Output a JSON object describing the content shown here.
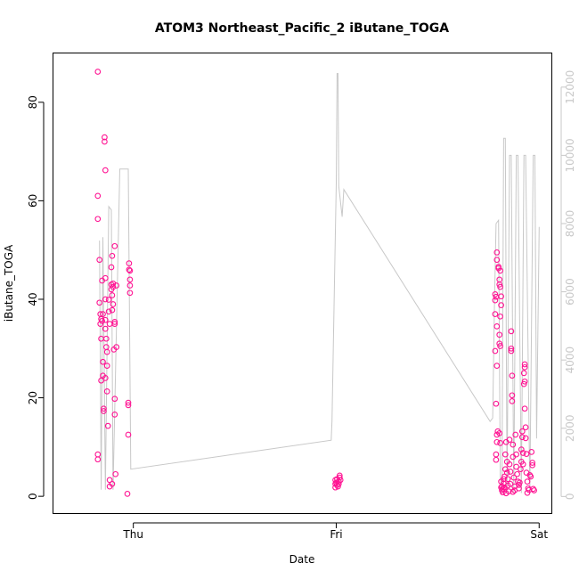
{
  "chart_data": {
    "type": "scatter",
    "title": "ATOM3 Northeast_Pacific_2 iButane_TOGA",
    "xlabel": "Date",
    "ylabel": "iButane_TOGA",
    "x_unit": "hours since Thu 00:00",
    "xlim": [
      -9.5,
      49.5
    ],
    "x_ticks": [
      {
        "value": 0,
        "label": "Thu"
      },
      {
        "value": 24,
        "label": "Fri"
      },
      {
        "value": 48,
        "label": "Sat"
      }
    ],
    "ylim": [
      -3.5,
      90
    ],
    "y_ticks": [
      0,
      20,
      40,
      60,
      80
    ],
    "y2lim": [
      -500,
      13000
    ],
    "y2_ticks": [
      0,
      2000,
      4000,
      6000,
      8000,
      10000,
      12000
    ],
    "grid": false,
    "point_color": "#ff1493",
    "line_color": "#c8c8c8",
    "series": [
      {
        "type": "scatter",
        "axis": "left",
        "points": [
          [
            -4.2,
            86.2
          ],
          [
            -4.2,
            61.0
          ],
          [
            -4.2,
            56.3
          ],
          [
            -4.2,
            8.5
          ],
          [
            -4.2,
            7.5
          ],
          [
            -4.0,
            48.0
          ],
          [
            -4.0,
            39.3
          ],
          [
            -3.9,
            37.0
          ],
          [
            -3.9,
            35.0
          ],
          [
            -3.8,
            32.0
          ],
          [
            -3.8,
            23.5
          ],
          [
            -3.7,
            43.8
          ],
          [
            -3.7,
            35.6
          ],
          [
            -3.6,
            37.0
          ],
          [
            -3.6,
            27.3
          ],
          [
            -3.6,
            24.5
          ],
          [
            -3.5,
            17.3
          ],
          [
            -3.5,
            17.8
          ],
          [
            -3.4,
            72.9
          ],
          [
            -3.4,
            72.0
          ],
          [
            -3.3,
            66.2
          ],
          [
            -3.3,
            44.3
          ],
          [
            -3.3,
            40.0
          ],
          [
            -3.3,
            35.8
          ],
          [
            -3.3,
            34.0
          ],
          [
            -3.2,
            32.0
          ],
          [
            -3.2,
            30.3
          ],
          [
            -3.1,
            29.3
          ],
          [
            -3.1,
            26.5
          ],
          [
            -3.1,
            21.3
          ],
          [
            -3.0,
            14.3
          ],
          [
            -2.9,
            39.9
          ],
          [
            -2.9,
            37.5
          ],
          [
            -2.8,
            35.0
          ],
          [
            -2.8,
            3.3
          ],
          [
            -2.8,
            2.0
          ],
          [
            -2.6,
            46.5
          ],
          [
            -2.6,
            43.0
          ],
          [
            -2.6,
            42.0
          ],
          [
            -2.5,
            40.8
          ],
          [
            -2.5,
            37.8
          ],
          [
            -2.5,
            48.8
          ],
          [
            -2.4,
            43.2
          ],
          [
            -2.4,
            42.5
          ],
          [
            -2.4,
            39.0
          ],
          [
            -2.3,
            29.8
          ],
          [
            -2.2,
            50.8
          ],
          [
            -2.2,
            35.4
          ],
          [
            -2.2,
            35.0
          ],
          [
            -2.2,
            19.8
          ],
          [
            -2.2,
            16.6
          ],
          [
            -2.1,
            4.5
          ],
          [
            -2.0,
            30.3
          ],
          [
            -2.0,
            42.8
          ],
          [
            -0.7,
            0.5
          ],
          [
            -0.6,
            19.0
          ],
          [
            -0.6,
            18.5
          ],
          [
            -0.6,
            12.5
          ],
          [
            -0.5,
            47.3
          ],
          [
            -0.5,
            46.0
          ],
          [
            -0.4,
            45.8
          ],
          [
            -0.4,
            44.0
          ],
          [
            -0.4,
            42.8
          ],
          [
            -0.4,
            41.3
          ],
          [
            -2.5,
            2.5
          ],
          [
            -3.3,
            24.0
          ],
          [
            -3.8,
            36.0
          ],
          [
            23.9,
            3.3
          ],
          [
            23.9,
            2.5
          ],
          [
            23.9,
            1.8
          ],
          [
            24.0,
            2.8
          ],
          [
            24.1,
            2.3
          ],
          [
            24.1,
            3.5
          ],
          [
            24.2,
            2.0
          ],
          [
            24.3,
            3.0
          ],
          [
            24.3,
            2.5
          ],
          [
            24.4,
            3.8
          ],
          [
            24.4,
            4.2
          ],
          [
            24.5,
            3.3
          ],
          [
            42.8,
            41.0
          ],
          [
            42.8,
            39.8
          ],
          [
            42.8,
            37.0
          ],
          [
            42.8,
            29.5
          ],
          [
            42.9,
            40.5
          ],
          [
            42.9,
            18.8
          ],
          [
            42.9,
            8.5
          ],
          [
            42.9,
            7.4
          ],
          [
            43.0,
            48.0
          ],
          [
            43.0,
            49.5
          ],
          [
            43.0,
            34.5
          ],
          [
            43.0,
            26.5
          ],
          [
            43.0,
            12.5
          ],
          [
            43.0,
            11.0
          ],
          [
            43.1,
            13.2
          ],
          [
            43.2,
            46.6
          ],
          [
            43.2,
            46.3
          ],
          [
            43.3,
            44.0
          ],
          [
            43.3,
            43.0
          ],
          [
            43.3,
            32.8
          ],
          [
            43.3,
            31.0
          ],
          [
            43.3,
            12.8
          ],
          [
            43.4,
            45.8
          ],
          [
            43.4,
            42.5
          ],
          [
            43.4,
            36.5
          ],
          [
            43.4,
            30.5
          ],
          [
            43.4,
            10.8
          ],
          [
            43.5,
            40.6
          ],
          [
            43.5,
            38.8
          ],
          [
            43.5,
            3.0
          ],
          [
            43.6,
            2.0
          ],
          [
            43.6,
            1.2
          ],
          [
            43.7,
            0.8
          ],
          [
            43.7,
            1.5
          ],
          [
            43.8,
            3.5
          ],
          [
            43.8,
            2.6
          ],
          [
            43.9,
            1.8
          ],
          [
            44.0,
            8.5
          ],
          [
            44.0,
            5.5
          ],
          [
            44.1,
            11.0
          ],
          [
            44.2,
            7.0
          ],
          [
            44.2,
            4.8
          ],
          [
            44.3,
            3.5
          ],
          [
            44.3,
            2.2
          ],
          [
            44.4,
            1.0
          ],
          [
            44.5,
            11.5
          ],
          [
            44.5,
            6.5
          ],
          [
            44.6,
            5.0
          ],
          [
            44.6,
            2.5
          ],
          [
            44.7,
            33.5
          ],
          [
            44.7,
            30.0
          ],
          [
            44.7,
            29.5
          ],
          [
            44.8,
            24.5
          ],
          [
            44.8,
            20.5
          ],
          [
            44.8,
            19.3
          ],
          [
            44.9,
            10.5
          ],
          [
            44.9,
            8.0
          ],
          [
            45.0,
            3.8
          ],
          [
            45.1,
            2.0
          ],
          [
            45.1,
            1.2
          ],
          [
            45.2,
            12.5
          ],
          [
            45.3,
            8.5
          ],
          [
            45.3,
            6.0
          ],
          [
            45.4,
            4.5
          ],
          [
            45.5,
            3.0
          ],
          [
            45.6,
            1.6
          ],
          [
            45.7,
            2.8
          ],
          [
            45.8,
            5.5
          ],
          [
            45.9,
            7.0
          ],
          [
            45.9,
            9.5
          ],
          [
            46.0,
            12.0
          ],
          [
            46.0,
            13.2
          ],
          [
            46.1,
            8.8
          ],
          [
            46.1,
            6.5
          ],
          [
            46.2,
            25.0
          ],
          [
            46.2,
            22.8
          ],
          [
            46.3,
            26.2
          ],
          [
            46.3,
            26.8
          ],
          [
            46.3,
            23.3
          ],
          [
            46.3,
            17.8
          ],
          [
            46.4,
            14.0
          ],
          [
            46.4,
            11.8
          ],
          [
            46.5,
            8.6
          ],
          [
            46.5,
            4.8
          ],
          [
            46.6,
            3.0
          ],
          [
            46.7,
            1.6
          ],
          [
            46.8,
            1.3
          ],
          [
            46.9,
            4.3
          ],
          [
            47.0,
            4.0
          ],
          [
            47.1,
            9.0
          ],
          [
            47.2,
            6.3
          ],
          [
            47.2,
            6.8
          ],
          [
            47.3,
            1.5
          ],
          [
            47.4,
            1.2
          ],
          [
            43.5,
            1.8
          ],
          [
            44.1,
            0.6
          ],
          [
            44.9,
            0.9
          ],
          [
            45.6,
            2.3
          ],
          [
            46.6,
            0.7
          ],
          [
            43.9,
            4.0
          ]
        ]
      },
      {
        "type": "line",
        "axis": "right",
        "points": [
          [
            -4.0,
            7500
          ],
          [
            -3.8,
            200
          ],
          [
            -3.6,
            7600
          ],
          [
            -3.3,
            200
          ],
          [
            -2.9,
            8500
          ],
          [
            -2.6,
            8400
          ],
          [
            -2.4,
            200
          ],
          [
            -1.6,
            9600
          ],
          [
            -1.0,
            9600
          ],
          [
            -0.6,
            9600
          ],
          [
            -0.3,
            800
          ],
          [
            23.4,
            1650
          ],
          [
            23.5,
            2200
          ],
          [
            24.0,
            9200
          ],
          [
            24.1,
            12400
          ],
          [
            24.2,
            12400
          ],
          [
            24.7,
            8200
          ],
          [
            24.9,
            9000
          ],
          [
            42.2,
            2200
          ],
          [
            42.5,
            2300
          ],
          [
            42.7,
            5500
          ],
          [
            42.9,
            8000
          ],
          [
            43.2,
            8100
          ],
          [
            43.4,
            600
          ],
          [
            43.6,
            100
          ],
          [
            43.8,
            10500
          ],
          [
            44.0,
            10500
          ],
          [
            44.2,
            100
          ],
          [
            44.5,
            10000
          ],
          [
            44.7,
            10000
          ],
          [
            45.0,
            100
          ],
          [
            45.3,
            10000
          ],
          [
            45.5,
            10000
          ],
          [
            45.9,
            100
          ],
          [
            46.2,
            10000
          ],
          [
            46.4,
            10000
          ],
          [
            46.9,
            100
          ],
          [
            47.3,
            10000
          ],
          [
            47.5,
            10000
          ],
          [
            47.7,
            1700
          ],
          [
            48.0,
            7900
          ],
          [
            24.3,
            9100
          ]
        ]
      }
    ]
  }
}
